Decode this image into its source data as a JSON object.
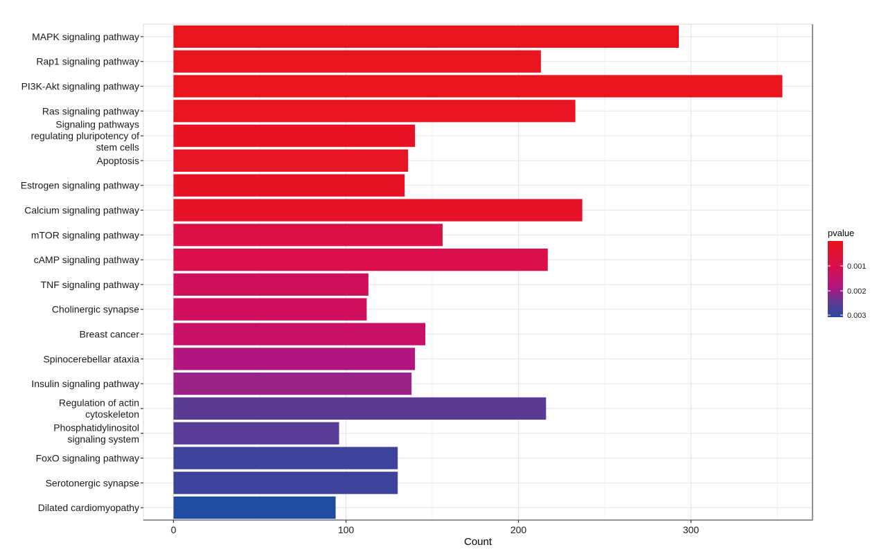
{
  "chart_data": {
    "type": "bar",
    "orientation": "horizontal",
    "title": "",
    "xlabel": "Count",
    "ylabel": "",
    "xlim": [
      -15,
      370
    ],
    "x_ticks": [
      0,
      100,
      200,
      300
    ],
    "grid": true,
    "categories": [
      "MAPK signaling pathway",
      "Rap1 signaling pathway",
      "PI3K-Akt signaling pathway",
      "Ras signaling pathway",
      "Signaling pathways\nregulating pluripotency of\nstem cells",
      "Apoptosis",
      "Estrogen signaling pathway",
      "Calcium signaling pathway",
      "mTOR signaling pathway",
      "cAMP signaling pathway",
      "TNF signaling pathway",
      "Cholinergic synapse",
      "Breast cancer",
      "Spinocerebellar ataxia",
      "Insulin signaling pathway",
      "Regulation of actin\ncytoskeleton",
      "Phosphatidylinositol\nsignaling system",
      "FoxO signaling pathway",
      "Serotonergic synapse",
      "Dilated cardiomyopathy"
    ],
    "values": [
      293,
      213,
      353,
      233,
      140,
      136,
      134,
      237,
      156,
      217,
      113,
      112,
      146,
      140,
      138,
      216,
      96,
      130,
      130,
      94
    ],
    "pvalues": [
      1e-05,
      2e-05,
      3e-05,
      5e-05,
      0.0001,
      0.0001,
      0.00012,
      0.00015,
      0.0004,
      0.0005,
      0.0009,
      0.001,
      0.0012,
      0.0016,
      0.002,
      0.0026,
      0.0027,
      0.003,
      0.003,
      0.0033
    ],
    "bar_colors": [
      "#e8141e",
      "#e8141e",
      "#e8141e",
      "#e8141f",
      "#e71324",
      "#e71326",
      "#e61327",
      "#e5122a",
      "#dc1048",
      "#da104b",
      "#d00f5a",
      "#ce0f5d",
      "#c71066",
      "#b3157f",
      "#9b2286",
      "#5a3b93",
      "#573d96",
      "#3d429a",
      "#3d429a",
      "#1f4ba0"
    ],
    "legend": {
      "title": "pvalue",
      "type": "colorbar",
      "position": "right",
      "ticks": [
        "0.001",
        "0.002",
        "0.003"
      ],
      "color_low": "#e8141e",
      "color_high": "#1f4ba0"
    }
  }
}
